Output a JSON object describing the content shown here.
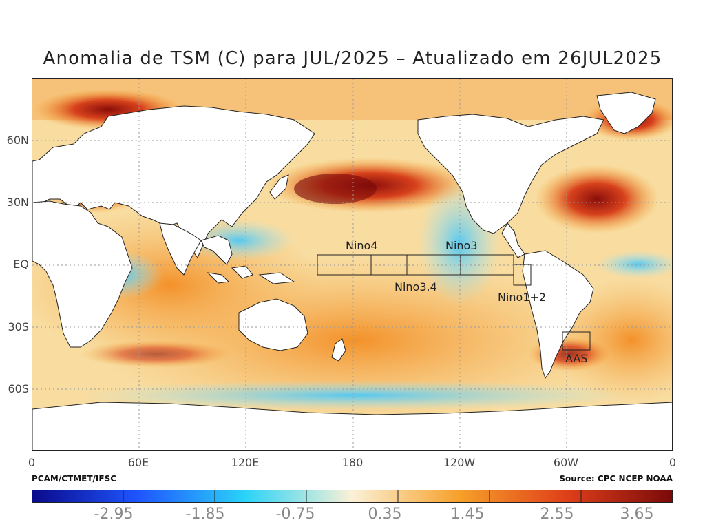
{
  "title": "Anomalia de TSM (C) para JUL/2025 – Atualizado em 26JUL2025",
  "map": {
    "lat_labels": [
      "60N",
      "30N",
      "EQ",
      "30S",
      "60S"
    ],
    "lon_labels": [
      "0",
      "60E",
      "120E",
      "180",
      "120W",
      "60W",
      "0"
    ],
    "regions": [
      "Nino4",
      "Nino3",
      "Nino3.4",
      "Nino1+2",
      "AAS"
    ]
  },
  "credits": {
    "left": "PCAM/CTMET/IFSC",
    "right": "Source: CPC NCEP NOAA"
  },
  "colorbar": {
    "labels": [
      "-2.95",
      "-1.85",
      "-0.75",
      "0.35",
      "1.45",
      "2.55",
      "3.65"
    ],
    "colors": [
      "#0a0a8c",
      "#1f56ff",
      "#2ad4f7",
      "#fbf1d6",
      "#f6a12a",
      "#e0401a",
      "#7a0a0a"
    ]
  }
}
